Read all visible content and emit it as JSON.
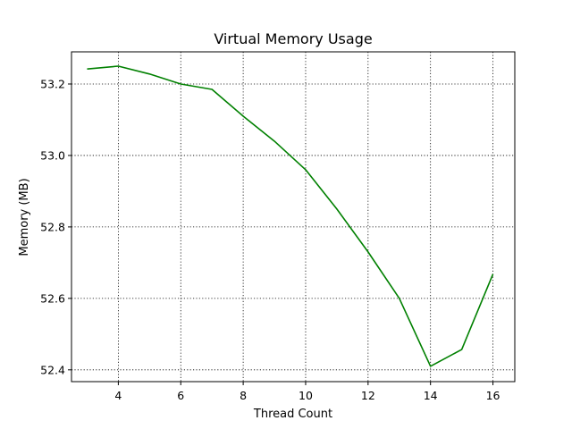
{
  "chart_data": {
    "type": "line",
    "title": "Virtual Memory Usage",
    "xlabel": "Thread Count",
    "ylabel": "Memory (MB)",
    "xlim": [
      2.5,
      16.7
    ],
    "ylim": [
      52.367,
      53.29
    ],
    "xticks": [
      4,
      6,
      8,
      10,
      12,
      14,
      16
    ],
    "yticks": [
      52.4,
      52.6,
      52.8,
      53.0,
      53.2
    ],
    "ytick_labels": [
      "52.4",
      "52.6",
      "52.8",
      "53.0",
      "53.2"
    ],
    "grid": true,
    "series": [
      {
        "color": "#008000",
        "x": [
          3,
          4,
          5,
          6,
          7,
          8,
          9,
          10,
          11,
          12,
          13,
          14,
          15,
          16
        ],
        "y": [
          53.242,
          53.25,
          53.228,
          53.2,
          53.185,
          53.11,
          53.04,
          52.96,
          52.85,
          52.73,
          52.6,
          52.41,
          52.457,
          52.668
        ]
      }
    ]
  }
}
